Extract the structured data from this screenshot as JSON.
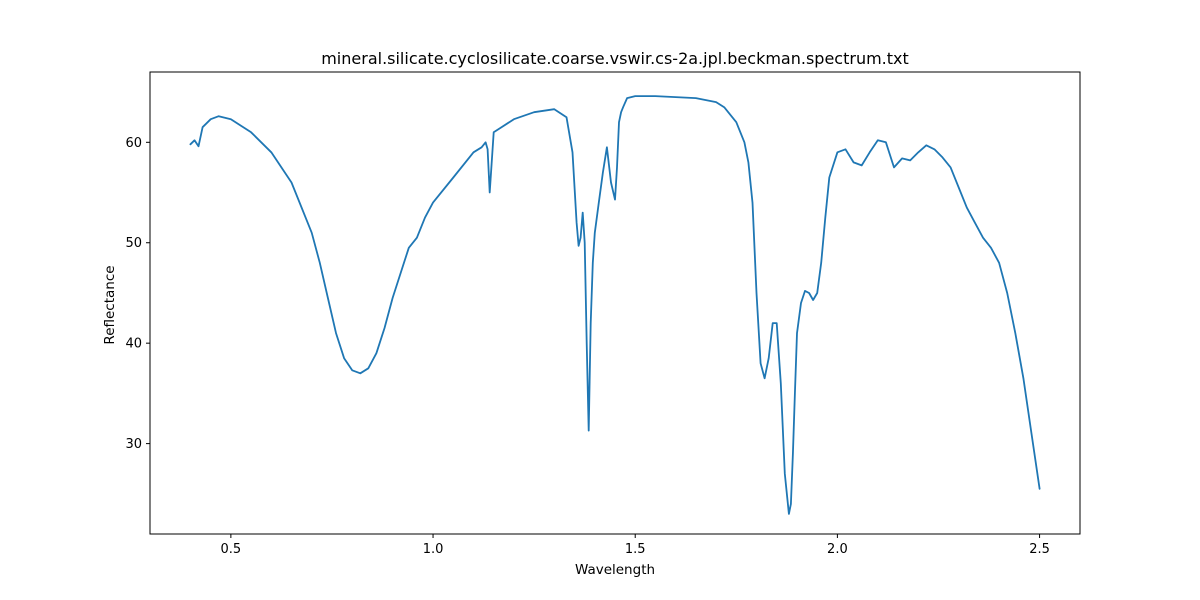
{
  "chart_data": {
    "type": "line",
    "title": "mineral.silicate.cyclosilicate.coarse.vswir.cs-2a.jpl.beckman.spectrum.txt",
    "xlabel": "Wavelength",
    "ylabel": "Reflectance",
    "xlim": [
      0.3,
      2.6
    ],
    "ylim": [
      21,
      67
    ],
    "xticks": [
      0.5,
      1.0,
      1.5,
      2.0,
      2.5
    ],
    "xtick_labels": [
      "0.5",
      "1.0",
      "1.5",
      "2.0",
      "2.5"
    ],
    "yticks": [
      30,
      40,
      50,
      60
    ],
    "ytick_labels": [
      "30",
      "40",
      "50",
      "60"
    ],
    "grid": false,
    "line_color": "#1f77b4",
    "series": [
      {
        "x": [
          0.4,
          0.41,
          0.42,
          0.43,
          0.45,
          0.47,
          0.5,
          0.55,
          0.6,
          0.65,
          0.7,
          0.72,
          0.74,
          0.76,
          0.78,
          0.8,
          0.82,
          0.84,
          0.86,
          0.88,
          0.9,
          0.92,
          0.94,
          0.96,
          0.98,
          1.0,
          1.05,
          1.1,
          1.12,
          1.13,
          1.135,
          1.14,
          1.145,
          1.15,
          1.2,
          1.25,
          1.3,
          1.33,
          1.345,
          1.355,
          1.36,
          1.365,
          1.37,
          1.375,
          1.38,
          1.385,
          1.39,
          1.395,
          1.4,
          1.41,
          1.42,
          1.43,
          1.44,
          1.45,
          1.455,
          1.46,
          1.465,
          1.47,
          1.48,
          1.5,
          1.55,
          1.6,
          1.65,
          1.7,
          1.72,
          1.75,
          1.77,
          1.78,
          1.79,
          1.8,
          1.81,
          1.82,
          1.83,
          1.84,
          1.85,
          1.86,
          1.87,
          1.88,
          1.885,
          1.89,
          1.895,
          1.9,
          1.91,
          1.92,
          1.93,
          1.94,
          1.95,
          1.96,
          1.97,
          1.98,
          2.0,
          2.02,
          2.04,
          2.06,
          2.08,
          2.1,
          2.12,
          2.14,
          2.16,
          2.18,
          2.2,
          2.22,
          2.24,
          2.26,
          2.28,
          2.3,
          2.32,
          2.34,
          2.36,
          2.38,
          2.4,
          2.42,
          2.44,
          2.46,
          2.48,
          2.5
        ],
        "y": [
          59.8,
          60.2,
          59.6,
          61.5,
          62.3,
          62.6,
          62.3,
          61.0,
          59.0,
          56.0,
          51.0,
          48.0,
          44.5,
          41.0,
          38.5,
          37.3,
          37.0,
          37.5,
          39.0,
          41.5,
          44.5,
          47.0,
          49.5,
          50.5,
          52.5,
          54.0,
          56.5,
          59.0,
          59.5,
          60.0,
          59.3,
          55.0,
          58.0,
          61.0,
          62.3,
          63.0,
          63.3,
          62.5,
          59.0,
          52.0,
          49.7,
          50.5,
          53.0,
          50.0,
          40.0,
          31.3,
          42.0,
          48.0,
          51.0,
          54.0,
          57.0,
          59.5,
          56.0,
          54.3,
          57.5,
          62.0,
          63.0,
          63.5,
          64.4,
          64.6,
          64.6,
          64.5,
          64.4,
          64.0,
          63.5,
          62.0,
          60.0,
          58.0,
          54.0,
          45.0,
          38.0,
          36.5,
          38.5,
          42.0,
          42.0,
          36.0,
          27.0,
          23.0,
          24.0,
          29.0,
          35.0,
          41.0,
          44.0,
          45.2,
          45.0,
          44.3,
          45.0,
          48.0,
          52.5,
          56.5,
          59.0,
          59.3,
          58.0,
          57.7,
          59.0,
          60.2,
          60.0,
          57.5,
          58.4,
          58.2,
          59.0,
          59.7,
          59.3,
          58.5,
          57.5,
          55.5,
          53.5,
          52.0,
          50.5,
          49.5,
          48.0,
          45.0,
          41.0,
          36.5,
          31.0,
          25.5
        ]
      }
    ]
  }
}
